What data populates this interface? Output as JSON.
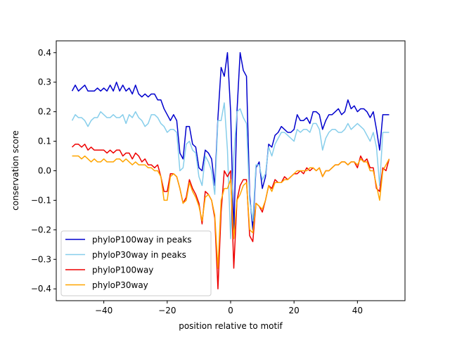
{
  "chart_data": {
    "type": "line",
    "xlabel": "position relative to motif",
    "ylabel": "conservation score",
    "x": [
      -50,
      -49,
      -48,
      -47,
      -46,
      -45,
      -44,
      -43,
      -42,
      -41,
      -40,
      -39,
      -38,
      -37,
      -36,
      -35,
      -34,
      -33,
      -32,
      -31,
      -30,
      -29,
      -28,
      -27,
      -26,
      -25,
      -24,
      -23,
      -22,
      -21,
      -20,
      -19,
      -18,
      -17,
      -16,
      -15,
      -14,
      -13,
      -12,
      -11,
      -10,
      -9,
      -8,
      -7,
      -6,
      -5,
      -4,
      -3,
      -2,
      -1,
      0,
      1,
      2,
      3,
      4,
      5,
      6,
      7,
      8,
      9,
      10,
      11,
      12,
      13,
      14,
      15,
      16,
      17,
      18,
      19,
      20,
      21,
      22,
      23,
      24,
      25,
      26,
      27,
      28,
      29,
      30,
      31,
      32,
      33,
      34,
      35,
      36,
      37,
      38,
      39,
      40,
      41,
      42,
      43,
      44,
      45,
      46,
      47,
      48,
      49,
      50
    ],
    "series": [
      {
        "name": "phyloP100way in peaks",
        "color": "#0000cd",
        "values": [
          0.27,
          0.29,
          0.27,
          0.28,
          0.29,
          0.27,
          0.27,
          0.27,
          0.28,
          0.27,
          0.28,
          0.27,
          0.29,
          0.27,
          0.3,
          0.27,
          0.29,
          0.27,
          0.28,
          0.26,
          0.29,
          0.26,
          0.25,
          0.26,
          0.25,
          0.26,
          0.26,
          0.24,
          0.24,
          0.21,
          0.19,
          0.17,
          0.19,
          0.17,
          0.06,
          0.04,
          0.15,
          0.15,
          0.09,
          0.08,
          0.01,
          0.0,
          0.07,
          0.06,
          0.04,
          -0.05,
          0.18,
          0.35,
          0.32,
          0.4,
          0.2,
          -0.21,
          0.2,
          0.4,
          0.34,
          0.32,
          -0.08,
          -0.2,
          0.01,
          0.03,
          -0.06,
          -0.02,
          0.09,
          0.08,
          0.12,
          0.13,
          0.15,
          0.14,
          0.13,
          0.13,
          0.14,
          0.19,
          0.17,
          0.17,
          0.18,
          0.16,
          0.2,
          0.2,
          0.19,
          0.14,
          0.17,
          0.19,
          0.19,
          0.2,
          0.21,
          0.19,
          0.2,
          0.24,
          0.21,
          0.22,
          0.2,
          0.21,
          0.21,
          0.2,
          0.18,
          0.2,
          0.14,
          0.07,
          0.19,
          0.19,
          0.19
        ]
      },
      {
        "name": "phyloP30way in peaks",
        "color": "#87ceeb",
        "values": [
          0.17,
          0.19,
          0.18,
          0.18,
          0.17,
          0.15,
          0.17,
          0.18,
          0.18,
          0.2,
          0.19,
          0.18,
          0.18,
          0.19,
          0.18,
          0.18,
          0.19,
          0.16,
          0.19,
          0.18,
          0.2,
          0.18,
          0.17,
          0.15,
          0.16,
          0.19,
          0.19,
          0.18,
          0.16,
          0.15,
          0.13,
          0.14,
          0.14,
          0.13,
          0.0,
          0.01,
          0.09,
          0.1,
          0.07,
          0.06,
          -0.02,
          -0.05,
          0.05,
          0.03,
          0.0,
          -0.08,
          0.17,
          0.17,
          0.23,
          0.07,
          -0.23,
          0.05,
          0.2,
          0.21,
          0.18,
          0.16,
          -0.1,
          -0.17,
          0.02,
          0.02,
          -0.03,
          -0.01,
          0.08,
          0.05,
          0.09,
          0.11,
          0.13,
          0.13,
          0.12,
          0.11,
          0.1,
          0.14,
          0.13,
          0.14,
          0.14,
          0.13,
          0.16,
          0.16,
          0.14,
          0.07,
          0.11,
          0.13,
          0.14,
          0.14,
          0.13,
          0.13,
          0.14,
          0.16,
          0.14,
          0.15,
          0.16,
          0.15,
          0.14,
          0.12,
          0.1,
          0.13,
          0.08,
          -0.05,
          0.13,
          0.13,
          0.13
        ]
      },
      {
        "name": "phyloP100way",
        "color": "#ee0000",
        "values": [
          0.08,
          0.09,
          0.09,
          0.08,
          0.09,
          0.07,
          0.08,
          0.07,
          0.07,
          0.07,
          0.07,
          0.06,
          0.07,
          0.06,
          0.07,
          0.07,
          0.05,
          0.06,
          0.06,
          0.04,
          0.06,
          0.05,
          0.03,
          0.04,
          0.02,
          0.02,
          0.01,
          0.02,
          -0.02,
          -0.07,
          -0.07,
          -0.01,
          -0.01,
          -0.02,
          -0.06,
          -0.11,
          -0.09,
          -0.03,
          -0.06,
          -0.08,
          -0.11,
          -0.18,
          -0.07,
          -0.08,
          -0.1,
          -0.16,
          -0.4,
          -0.14,
          0.0,
          -0.02,
          0.0,
          -0.33,
          -0.1,
          -0.05,
          -0.03,
          -0.03,
          -0.22,
          -0.24,
          -0.11,
          -0.12,
          -0.14,
          -0.1,
          -0.05,
          -0.06,
          -0.03,
          -0.04,
          -0.04,
          -0.02,
          -0.03,
          -0.02,
          -0.01,
          -0.01,
          0.0,
          -0.01,
          0.01,
          0.0,
          0.01,
          0.0,
          0.01,
          -0.02,
          0.0,
          0.0,
          0.01,
          0.02,
          0.02,
          0.03,
          0.03,
          0.02,
          0.03,
          0.03,
          0.01,
          0.05,
          0.03,
          0.04,
          0.01,
          0.01,
          -0.06,
          -0.07,
          0.01,
          0.0,
          0.04
        ]
      },
      {
        "name": "phyloP30way",
        "color": "#ffa500",
        "values": [
          0.05,
          0.05,
          0.05,
          0.04,
          0.05,
          0.04,
          0.03,
          0.04,
          0.03,
          0.03,
          0.04,
          0.03,
          0.03,
          0.03,
          0.04,
          0.04,
          0.03,
          0.04,
          0.03,
          0.02,
          0.03,
          0.02,
          0.02,
          0.02,
          0.01,
          0.01,
          0.0,
          0.0,
          -0.02,
          -0.1,
          -0.1,
          -0.02,
          -0.01,
          -0.02,
          -0.06,
          -0.11,
          -0.1,
          -0.04,
          -0.07,
          -0.09,
          -0.12,
          -0.17,
          -0.09,
          -0.08,
          -0.1,
          -0.15,
          -0.33,
          -0.1,
          -0.06,
          -0.06,
          -0.03,
          -0.23,
          -0.1,
          -0.08,
          -0.05,
          -0.04,
          -0.2,
          -0.21,
          -0.11,
          -0.12,
          -0.13,
          -0.1,
          -0.05,
          -0.07,
          -0.04,
          -0.04,
          -0.04,
          -0.03,
          -0.03,
          -0.02,
          -0.01,
          0.0,
          0.0,
          0.0,
          0.0,
          0.01,
          0.01,
          0.0,
          0.01,
          -0.02,
          0.0,
          0.0,
          0.01,
          0.02,
          0.02,
          0.03,
          0.03,
          0.02,
          0.03,
          0.03,
          0.02,
          0.04,
          0.03,
          0.03,
          0.0,
          0.0,
          -0.05,
          -0.1,
          0.0,
          0.02,
          0.04
        ]
      }
    ],
    "xlim": [
      -55,
      55
    ],
    "xticks": [
      {
        "value": -40,
        "label": "−40"
      },
      {
        "value": -20,
        "label": "−20"
      },
      0,
      20,
      40
    ],
    "ylim": [
      -0.44,
      0.44
    ],
    "yticks": [
      {
        "value": -0.4,
        "label": "−0.4"
      },
      {
        "value": -0.3,
        "label": "−0.3"
      },
      {
        "value": -0.2,
        "label": "−0.2"
      },
      {
        "value": -0.1,
        "label": "−0.1"
      },
      {
        "value": 0,
        "label": "0.0"
      },
      0.1,
      0.2,
      0.3,
      0.4
    ],
    "legend": "lower left"
  }
}
